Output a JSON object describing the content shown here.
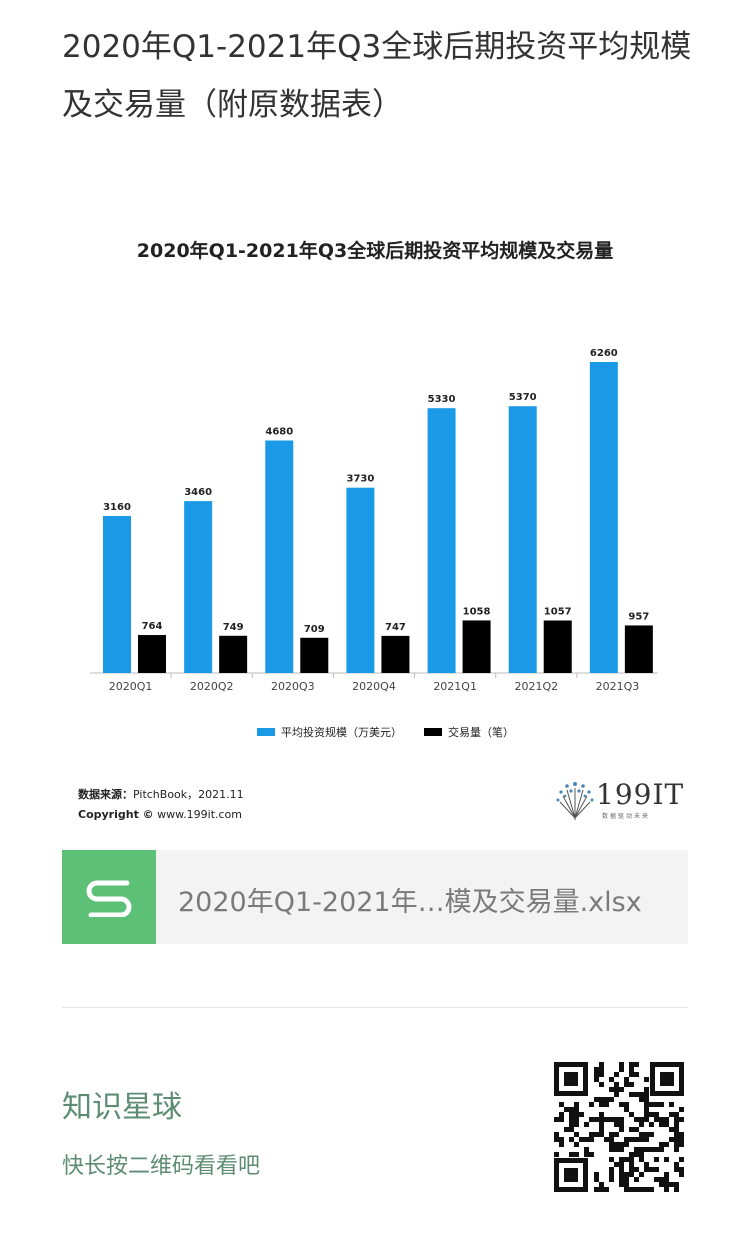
{
  "page": {
    "title": "2020年Q1-2021年Q3全球后期投资平均规模及交易量（附原数据表）"
  },
  "chart_data": {
    "type": "bar",
    "title": "2020年Q1-2021年Q3全球后期投资平均规模及交易量",
    "categories": [
      "2020Q1",
      "2020Q2",
      "2020Q3",
      "2020Q4",
      "2021Q1",
      "2021Q2",
      "2021Q3"
    ],
    "series": [
      {
        "name": "平均投资规模（万美元）",
        "color": "#1a9ae6",
        "values": [
          3160,
          3460,
          4680,
          3730,
          5330,
          5370,
          6260
        ]
      },
      {
        "name": "交易量（笔）",
        "color": "#000000",
        "values": [
          764,
          749,
          709,
          747,
          1058,
          1057,
          957
        ]
      }
    ],
    "ylim": [
      0,
      6260
    ],
    "grid": false,
    "legend": "bottom",
    "xlabel": "",
    "ylabel": ""
  },
  "source": {
    "label": "数据来源：",
    "text": "PitchBook，2021.11",
    "copyright_label": "Copyright ©",
    "copyright_text": "www.199it.com"
  },
  "logo": {
    "text": "199IT",
    "tagline": "数据驱动未来"
  },
  "attachment": {
    "icon": "sheet-s-icon",
    "filename": "2020年Q1-2021年…模及交易量.xlsx"
  },
  "community": {
    "title": "知识星球",
    "subtitle": "快长按二维码看看吧"
  }
}
